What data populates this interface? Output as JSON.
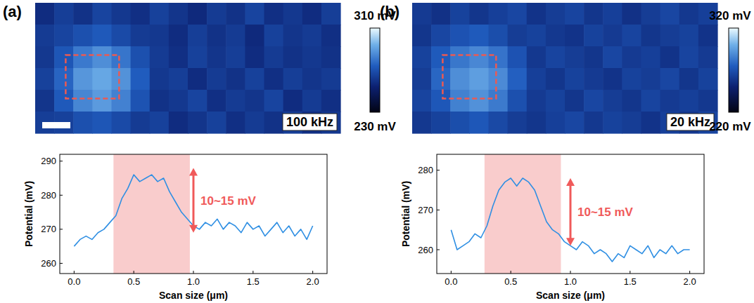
{
  "chart_data": [
    {
      "type": "heatmap",
      "title": "(a)",
      "annotations": [
        "100 kHz"
      ],
      "colorbar_range": [
        230,
        310
      ],
      "colorbar_ticks": [
        {
          "value": 230,
          "label": "230 mV"
        },
        {
          "value": 310,
          "label": "310 mV"
        }
      ],
      "cells": [
        [
          258,
          264,
          260,
          266,
          262,
          259,
          265,
          261,
          257,
          263,
          260,
          266,
          259,
          262,
          258,
          264
        ],
        [
          263,
          266,
          270,
          273,
          268,
          263,
          262,
          258,
          264,
          260,
          263,
          257,
          265,
          261,
          263,
          259
        ],
        [
          262,
          272,
          281,
          286,
          280,
          270,
          263,
          259,
          265,
          261,
          264,
          258,
          263,
          260,
          262,
          260
        ],
        [
          265,
          276,
          288,
          292,
          287,
          274,
          262,
          264,
          258,
          263,
          260,
          265,
          259,
          264,
          261,
          263
        ],
        [
          261,
          273,
          284,
          289,
          283,
          271,
          260,
          262,
          266,
          259,
          263,
          261,
          266,
          258,
          263,
          259
        ],
        [
          264,
          265,
          270,
          272,
          268,
          263,
          265,
          258,
          261,
          265,
          259,
          263,
          260,
          264,
          259,
          262
        ]
      ]
    },
    {
      "type": "line",
      "x_label": "Scan size (μm)",
      "y_label": "Potential (mV)",
      "color": "#2f8fe3",
      "x": [
        0,
        0.05,
        0.1,
        0.15,
        0.2,
        0.25,
        0.3,
        0.35,
        0.4,
        0.45,
        0.5,
        0.55,
        0.6,
        0.65,
        0.7,
        0.75,
        0.8,
        0.85,
        0.9,
        0.95,
        1,
        1.05,
        1.1,
        1.15,
        1.2,
        1.25,
        1.3,
        1.35,
        1.4,
        1.45,
        1.5,
        1.55,
        1.6,
        1.65,
        1.7,
        1.75,
        1.8,
        1.85,
        1.9,
        1.95,
        2
      ],
      "values": [
        265,
        267,
        268,
        267,
        269,
        270,
        272,
        274,
        279,
        282,
        286,
        284,
        285,
        286,
        284,
        285,
        281,
        278,
        275,
        273,
        271,
        270,
        272,
        271,
        273,
        270,
        272,
        271,
        269,
        272,
        270,
        271,
        268,
        270,
        272,
        269,
        271,
        268,
        270,
        267,
        271
      ],
      "xlim": [
        -0.12,
        2.12
      ],
      "ylim": [
        257,
        292
      ],
      "xticks": [
        {
          "value": 0,
          "label": "0.0"
        },
        0.5,
        {
          "value": 1,
          "label": "1.0"
        },
        1.5,
        {
          "value": 2,
          "label": "2.0"
        }
      ],
      "yticks": [
        260,
        270,
        280,
        290
      ],
      "highlight": [
        0.33,
        0.97
      ],
      "annotations": [
        {
          "text": "10~15 mV",
          "x": 1.0,
          "from": 269,
          "to": 288
        }
      ]
    },
    {
      "type": "heatmap",
      "title": "(b)",
      "annotations": [
        "20 kHz"
      ],
      "colorbar_range": [
        220,
        320
      ],
      "colorbar_ticks": [
        {
          "value": 220,
          "label": "220 mV"
        },
        {
          "value": 320,
          "label": "320 mV"
        }
      ],
      "cells": [
        [
          261,
          257,
          264,
          259,
          263,
          266,
          258,
          262,
          265,
          259,
          263,
          257,
          262,
          266,
          260,
          263
        ],
        [
          259,
          266,
          271,
          274,
          269,
          262,
          264,
          260,
          258,
          264,
          261,
          265,
          259,
          262,
          264,
          258
        ],
        [
          264,
          274,
          283,
          288,
          282,
          271,
          260,
          265,
          262,
          259,
          266,
          261,
          263,
          258,
          265,
          261
        ],
        [
          262,
          278,
          290,
          295,
          289,
          276,
          263,
          259,
          264,
          261,
          258,
          264,
          262,
          266,
          259,
          264
        ],
        [
          265,
          273,
          286,
          291,
          284,
          270,
          261,
          264,
          259,
          266,
          262,
          259,
          265,
          261,
          263,
          260
        ],
        [
          260,
          264,
          269,
          273,
          267,
          262,
          259,
          263,
          266,
          260,
          264,
          262,
          258,
          263,
          260,
          265
        ]
      ]
    },
    {
      "type": "line",
      "x_label": "Scan size (μm)",
      "y_label": "Potential (mV)",
      "color": "#2f8fe3",
      "x": [
        0,
        0.05,
        0.1,
        0.15,
        0.2,
        0.25,
        0.3,
        0.35,
        0.4,
        0.45,
        0.5,
        0.55,
        0.6,
        0.65,
        0.7,
        0.75,
        0.8,
        0.85,
        0.9,
        0.95,
        1,
        1.05,
        1.1,
        1.15,
        1.2,
        1.25,
        1.3,
        1.35,
        1.4,
        1.45,
        1.5,
        1.55,
        1.6,
        1.65,
        1.7,
        1.75,
        1.8,
        1.85,
        1.9,
        1.95,
        2
      ],
      "values": [
        265,
        260,
        261,
        262,
        264,
        263,
        266,
        271,
        275,
        277,
        278,
        276,
        278,
        277,
        275,
        271,
        267,
        265,
        264,
        262,
        261,
        260,
        262,
        261,
        259,
        260,
        259,
        257,
        259,
        258,
        261,
        260,
        259,
        261,
        258,
        260,
        259,
        261,
        259,
        260,
        260
      ],
      "xlim": [
        -0.12,
        2.12
      ],
      "ylim": [
        254,
        284
      ],
      "xticks": [
        {
          "value": 0,
          "label": "0.0"
        },
        0.5,
        {
          "value": 1,
          "label": "1.0"
        },
        1.5,
        {
          "value": 2,
          "label": "2.0"
        }
      ],
      "yticks": [
        260,
        270,
        280
      ],
      "highlight": [
        0.28,
        0.92
      ],
      "annotations": [
        {
          "text": "10~15 mV",
          "x": 1.0,
          "from": 261,
          "to": 278
        }
      ]
    }
  ]
}
